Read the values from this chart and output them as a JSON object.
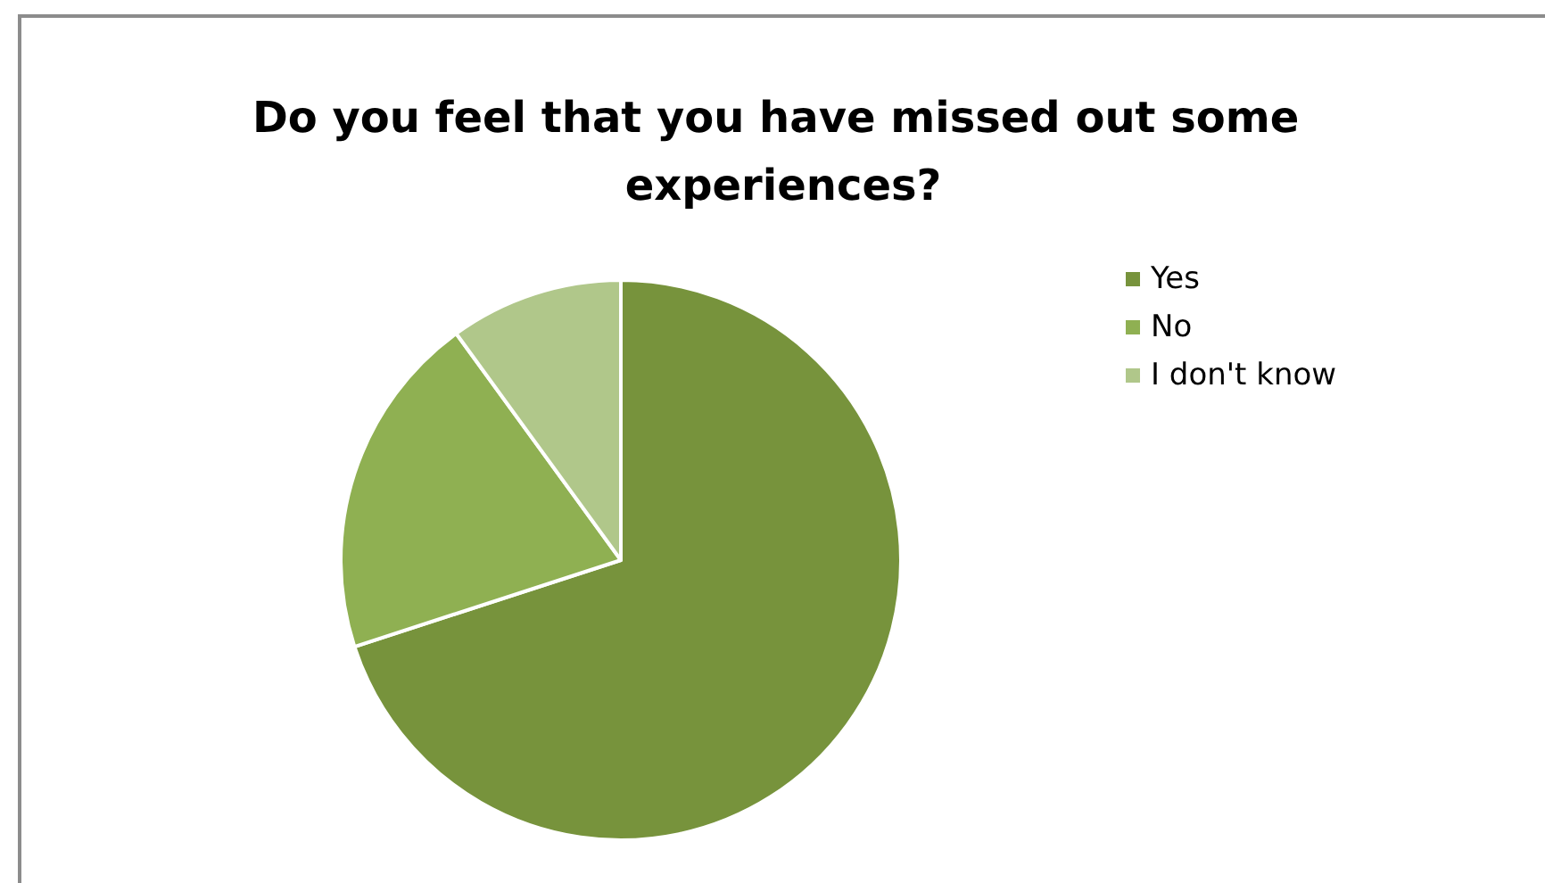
{
  "chart_data": {
    "type": "pie",
    "title": "Do you feel that you have missed out some experiences?",
    "categories": [
      "Yes",
      "No",
      "I don't know"
    ],
    "values": [
      70,
      20,
      10
    ],
    "colors": [
      "#77933c",
      "#8fb052",
      "#b0c78a"
    ],
    "legend": "top right"
  }
}
